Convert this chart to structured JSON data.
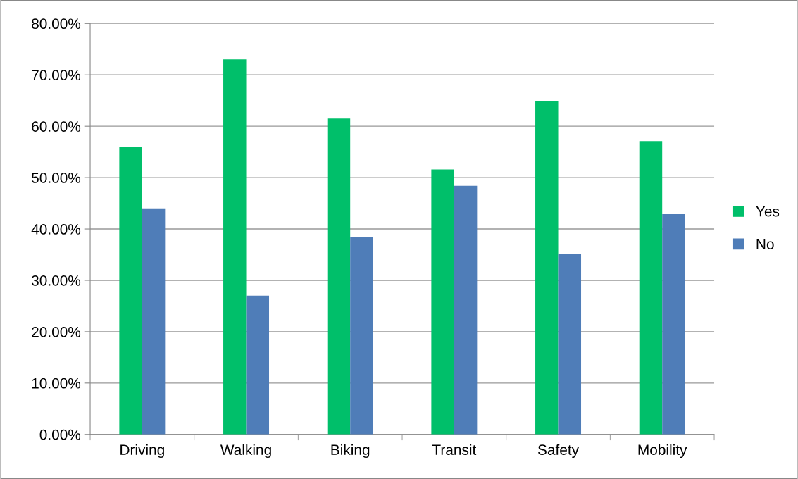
{
  "chart_data": {
    "type": "bar",
    "categories": [
      "Driving",
      "Walking",
      "Biking",
      "Transit",
      "Safety",
      "Mobility"
    ],
    "series": [
      {
        "name": "Yes",
        "color": "#00bf6a",
        "values": [
          56.0,
          73.0,
          61.5,
          51.6,
          64.9,
          57.1
        ]
      },
      {
        "name": "No",
        "color": "#4f7db8",
        "values": [
          44.0,
          27.0,
          38.5,
          48.4,
          35.1,
          42.9
        ]
      }
    ],
    "ylim": [
      0,
      80
    ],
    "yticks": [
      {
        "value": 0,
        "label": "0.00%"
      },
      {
        "value": 10,
        "label": "10.00%"
      },
      {
        "value": 20,
        "label": "20.00%"
      },
      {
        "value": 30,
        "label": "30.00%"
      },
      {
        "value": 40,
        "label": "40.00%"
      },
      {
        "value": 50,
        "label": "50.00%"
      },
      {
        "value": 60,
        "label": "60.00%"
      },
      {
        "value": 70,
        "label": "70.00%"
      },
      {
        "value": 80,
        "label": "80.00%"
      }
    ],
    "grid": "y",
    "legend": "right"
  }
}
